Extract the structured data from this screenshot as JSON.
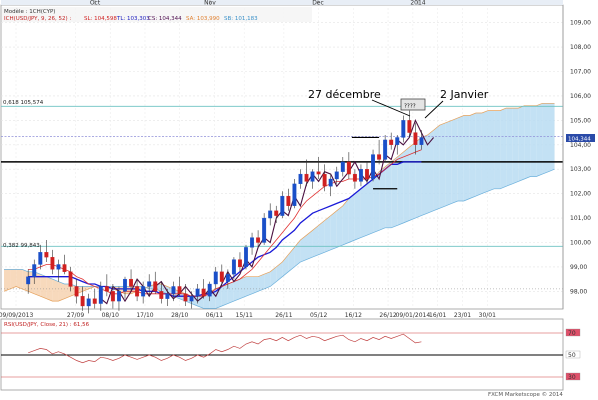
{
  "chart_data": {
    "type": "candlestick",
    "header": {
      "label": "Modèle : 1CH(CYP)",
      "ich": "ICH(USD/JPY, 9, 26, 52) :",
      "sl": "SL: 104,598",
      "tl": "TL: 103,303",
      "cs": "CS: 104,344",
      "sa": "SA: 103,990",
      "sb": "SB: 101,183"
    },
    "months_top": [
      "Oct",
      "Nov",
      "Dec",
      "2014"
    ],
    "x_ticks": [
      "09/09/2013",
      "27/09",
      "08/10",
      "17/10",
      "28/10",
      "06/11",
      "15/11",
      "26/11",
      "05/12",
      "16/12",
      "26/12",
      "09/01/2014",
      "16/01",
      "23/01",
      "30/01"
    ],
    "y_ticks": [
      98,
      99,
      100,
      101,
      102,
      103,
      104,
      105,
      106,
      107,
      108,
      109
    ],
    "y_tick_labels": [
      "98,00",
      "99,00",
      "100,00",
      "101,00",
      "102,00",
      "103,00",
      "104,00",
      "105,00",
      "106,00",
      "107,00",
      "108,00",
      "109,00"
    ],
    "ylim": [
      97.4,
      109.6
    ],
    "last_price_label": "104,344",
    "fib_label": "0,618 105,574",
    "fib_level": 105.574,
    "left_level_label": "0,382 99,843",
    "left_level": 99.843,
    "support_level": 103.3,
    "annotations": [
      "27 décembre",
      "2 Janvier",
      "????"
    ],
    "rsi_label": "RSI(USD/JPY, Close, 21) : 61,56",
    "rsi_ticks": [
      "70",
      "50",
      "30"
    ],
    "footer": "FXCM Marketscope © 2014",
    "candles": [
      {
        "o": 98.3,
        "h": 98.9,
        "l": 97.9,
        "c": 98.6
      },
      {
        "o": 98.6,
        "h": 99.3,
        "l": 98.3,
        "c": 99.1
      },
      {
        "o": 99.1,
        "h": 99.9,
        "l": 98.9,
        "c": 99.6
      },
      {
        "o": 99.6,
        "h": 100.1,
        "l": 99.2,
        "c": 99.4
      },
      {
        "o": 99.4,
        "h": 99.7,
        "l": 98.7,
        "c": 98.9
      },
      {
        "o": 98.9,
        "h": 99.3,
        "l": 98.4,
        "c": 99.1
      },
      {
        "o": 99.1,
        "h": 99.5,
        "l": 98.7,
        "c": 98.8
      },
      {
        "o": 98.8,
        "h": 99.0,
        "l": 98.0,
        "c": 98.2
      },
      {
        "o": 98.2,
        "h": 98.5,
        "l": 97.5,
        "c": 97.8
      },
      {
        "o": 97.8,
        "h": 98.2,
        "l": 97.2,
        "c": 97.4
      },
      {
        "o": 97.4,
        "h": 97.9,
        "l": 97.1,
        "c": 97.7
      },
      {
        "o": 97.7,
        "h": 98.1,
        "l": 97.3,
        "c": 97.5
      },
      {
        "o": 97.5,
        "h": 98.4,
        "l": 97.2,
        "c": 98.2
      },
      {
        "o": 98.2,
        "h": 98.7,
        "l": 97.8,
        "c": 98.0
      },
      {
        "o": 98.0,
        "h": 98.3,
        "l": 97.3,
        "c": 97.6
      },
      {
        "o": 97.6,
        "h": 98.2,
        "l": 97.2,
        "c": 98.0
      },
      {
        "o": 98.0,
        "h": 98.6,
        "l": 97.7,
        "c": 98.5
      },
      {
        "o": 98.5,
        "h": 98.9,
        "l": 98.0,
        "c": 98.2
      },
      {
        "o": 98.2,
        "h": 98.5,
        "l": 97.6,
        "c": 97.8
      },
      {
        "o": 97.8,
        "h": 98.4,
        "l": 97.5,
        "c": 98.2
      },
      {
        "o": 98.2,
        "h": 98.7,
        "l": 97.8,
        "c": 98.4
      },
      {
        "o": 98.4,
        "h": 98.8,
        "l": 97.9,
        "c": 98.0
      },
      {
        "o": 98.0,
        "h": 98.4,
        "l": 97.5,
        "c": 97.7
      },
      {
        "o": 97.7,
        "h": 98.1,
        "l": 97.4,
        "c": 97.9
      },
      {
        "o": 97.9,
        "h": 98.4,
        "l": 97.6,
        "c": 98.2
      },
      {
        "o": 98.2,
        "h": 98.6,
        "l": 97.8,
        "c": 97.9
      },
      {
        "o": 97.9,
        "h": 98.3,
        "l": 97.4,
        "c": 97.6
      },
      {
        "o": 97.6,
        "h": 98.0,
        "l": 97.3,
        "c": 97.8
      },
      {
        "o": 97.8,
        "h": 98.3,
        "l": 97.5,
        "c": 98.1
      },
      {
        "o": 98.1,
        "h": 98.5,
        "l": 97.7,
        "c": 97.8
      },
      {
        "o": 97.8,
        "h": 98.4,
        "l": 97.6,
        "c": 98.3
      },
      {
        "o": 98.3,
        "h": 99.0,
        "l": 98.1,
        "c": 98.8
      },
      {
        "o": 98.8,
        "h": 99.1,
        "l": 98.2,
        "c": 98.4
      },
      {
        "o": 98.4,
        "h": 98.9,
        "l": 98.1,
        "c": 98.7
      },
      {
        "o": 98.7,
        "h": 99.4,
        "l": 98.5,
        "c": 99.3
      },
      {
        "o": 99.3,
        "h": 99.6,
        "l": 98.8,
        "c": 99.0
      },
      {
        "o": 99.0,
        "h": 99.9,
        "l": 98.9,
        "c": 99.8
      },
      {
        "o": 99.8,
        "h": 100.4,
        "l": 99.5,
        "c": 100.2
      },
      {
        "o": 100.2,
        "h": 100.5,
        "l": 99.8,
        "c": 100.0
      },
      {
        "o": 100.0,
        "h": 101.2,
        "l": 99.9,
        "c": 101.0
      },
      {
        "o": 101.0,
        "h": 101.6,
        "l": 100.7,
        "c": 101.3
      },
      {
        "o": 101.3,
        "h": 101.5,
        "l": 100.8,
        "c": 101.1
      },
      {
        "o": 101.1,
        "h": 102.1,
        "l": 101.0,
        "c": 101.9
      },
      {
        "o": 101.9,
        "h": 102.2,
        "l": 101.3,
        "c": 101.5
      },
      {
        "o": 101.5,
        "h": 102.6,
        "l": 101.4,
        "c": 102.4
      },
      {
        "o": 102.4,
        "h": 103.0,
        "l": 102.2,
        "c": 102.8
      },
      {
        "o": 102.8,
        "h": 103.4,
        "l": 102.3,
        "c": 102.5
      },
      {
        "o": 102.5,
        "h": 103.0,
        "l": 102.2,
        "c": 102.9
      },
      {
        "o": 102.9,
        "h": 103.5,
        "l": 102.6,
        "c": 102.8
      },
      {
        "o": 102.8,
        "h": 103.2,
        "l": 102.1,
        "c": 102.3
      },
      {
        "o": 102.3,
        "h": 102.8,
        "l": 101.9,
        "c": 102.6
      },
      {
        "o": 102.6,
        "h": 103.1,
        "l": 102.4,
        "c": 102.9
      },
      {
        "o": 102.9,
        "h": 103.5,
        "l": 102.7,
        "c": 103.3
      },
      {
        "o": 103.3,
        "h": 103.7,
        "l": 102.6,
        "c": 102.8
      },
      {
        "o": 102.8,
        "h": 103.0,
        "l": 102.2,
        "c": 102.5
      },
      {
        "o": 102.5,
        "h": 103.2,
        "l": 102.3,
        "c": 103.0
      },
      {
        "o": 103.0,
        "h": 103.3,
        "l": 102.4,
        "c": 102.6
      },
      {
        "o": 102.6,
        "h": 103.8,
        "l": 102.5,
        "c": 103.6
      },
      {
        "o": 103.6,
        "h": 104.2,
        "l": 103.2,
        "c": 103.4
      },
      {
        "o": 103.4,
        "h": 104.4,
        "l": 103.3,
        "c": 104.2
      },
      {
        "o": 104.2,
        "h": 104.5,
        "l": 103.8,
        "c": 104.0
      },
      {
        "o": 104.0,
        "h": 104.4,
        "l": 103.6,
        "c": 104.3
      },
      {
        "o": 104.3,
        "h": 105.2,
        "l": 104.1,
        "c": 105.0
      },
      {
        "o": 105.0,
        "h": 105.4,
        "l": 104.3,
        "c": 104.5
      },
      {
        "o": 104.5,
        "h": 104.9,
        "l": 103.6,
        "c": 104.0
      },
      {
        "o": 104.0,
        "h": 104.6,
        "l": 103.8,
        "c": 104.3
      }
    ],
    "tenkan": [
      98.9,
      98.9,
      99.0,
      99.1,
      99.1,
      99.0,
      98.9,
      98.8,
      98.6,
      98.5,
      98.3,
      98.2,
      98.1,
      98.0,
      97.9,
      97.9,
      98.0,
      98.0,
      98.0,
      97.9,
      97.9,
      97.9,
      97.9,
      97.9,
      97.9,
      97.9,
      97.9,
      97.8,
      97.8,
      97.8,
      97.9,
      98.1,
      98.2,
      98.3,
      98.4,
      98.5,
      98.7,
      98.9,
      99.2,
      99.5,
      99.8,
      100.1,
      100.4,
      100.7,
      101.0,
      101.4,
      101.7,
      101.9,
      102.1,
      102.3,
      102.4,
      102.5,
      102.5,
      102.6,
      102.6,
      102.6,
      102.6,
      102.7,
      102.8,
      103.0,
      103.2,
      103.4,
      103.5,
      103.6,
      103.7,
      103.8
    ],
    "kijun": [
      98.6,
      98.6,
      98.6,
      98.6,
      98.6,
      98.6,
      98.6,
      98.6,
      98.5,
      98.4,
      98.3,
      98.3,
      98.2,
      98.2,
      98.1,
      98.1,
      98.1,
      98.1,
      98.1,
      98.0,
      98.0,
      98.0,
      97.9,
      97.9,
      97.8,
      97.8,
      97.8,
      97.8,
      97.8,
      97.9,
      97.9,
      98.0,
      98.2,
      98.4,
      98.6,
      98.8,
      99.0,
      99.2,
      99.4,
      99.5,
      99.6,
      99.8,
      100.1,
      100.3,
      100.5,
      100.8,
      101.0,
      101.2,
      101.3,
      101.4,
      101.5,
      101.6,
      101.7,
      101.8,
      102.0,
      102.2,
      102.4,
      102.6,
      102.8,
      103.0,
      103.2,
      103.2,
      103.3,
      103.3,
      103.3,
      103.3
    ],
    "chikou": [
      97.7,
      97.5,
      98.2,
      98.0,
      97.6,
      98.0,
      98.5,
      98.2,
      97.8,
      98.2,
      98.4,
      98.0,
      97.7,
      97.9,
      98.2,
      97.9,
      97.6,
      97.8,
      98.1,
      97.8,
      98.3,
      98.8,
      98.4,
      98.7,
      99.3,
      99.0,
      99.8,
      100.2,
      100.0,
      101.0,
      101.3,
      101.1,
      101.9,
      101.5,
      102.4,
      102.8,
      102.5,
      102.9,
      102.8,
      102.3,
      102.6,
      102.9,
      103.3,
      102.8,
      102.5,
      103.0,
      102.6,
      103.6,
      103.4,
      104.2,
      104.0,
      104.3,
      105.0,
      104.5,
      104.0,
      104.3
    ],
    "span_a": [
      98.0,
      98.1,
      98.2,
      98.1,
      98.0,
      97.9,
      97.8,
      97.7,
      97.6,
      97.6,
      97.7,
      97.8,
      97.9,
      98.0,
      98.1,
      98.2,
      98.2,
      98.2,
      98.1,
      98.0,
      97.9,
      97.9,
      98.0,
      98.1,
      98.2,
      98.3,
      98.3,
      98.2,
      98.1,
      98.0,
      97.9,
      97.8,
      97.8,
      97.9,
      98.0,
      98.1,
      98.2,
      98.3,
      98.4,
      98.5,
      98.6,
      98.6,
      98.6,
      98.7,
      98.8,
      99.0,
      99.2,
      99.5,
      99.8,
      100.1,
      100.3,
      100.5,
      100.7,
      100.9,
      101.1,
      101.3,
      101.5,
      101.8,
      102.0,
      102.2,
      102.4,
      102.6,
      102.9,
      103.1,
      103.3,
      103.5,
      103.7,
      103.9,
      104.1,
      104.3,
      104.4,
      104.6,
      104.8,
      104.9,
      105.0,
      105.1,
      105.2,
      105.2,
      105.3,
      105.3,
      105.4,
      105.4,
      105.4,
      105.5,
      105.5,
      105.5,
      105.6,
      105.6,
      105.6,
      105.7,
      105.7,
      105.7
    ],
    "span_b": [
      98.9,
      98.9,
      98.9,
      98.9,
      98.8,
      98.8,
      98.7,
      98.6,
      98.5,
      98.4,
      98.3,
      98.3,
      98.2,
      98.2,
      98.2,
      98.2,
      98.2,
      98.2,
      98.2,
      98.2,
      98.2,
      98.2,
      98.2,
      98.2,
      98.1,
      98.1,
      98.0,
      97.9,
      97.8,
      97.7,
      97.6,
      97.5,
      97.4,
      97.3,
      97.3,
      97.3,
      97.4,
      97.5,
      97.6,
      97.7,
      97.8,
      97.9,
      98.0,
      98.1,
      98.2,
      98.4,
      98.6,
      98.8,
      99.0,
      99.2,
      99.3,
      99.4,
      99.5,
      99.6,
      99.7,
      99.8,
      99.9,
      100.0,
      100.1,
      100.2,
      100.3,
      100.4,
      100.5,
      100.6,
      100.6,
      100.7,
      100.8,
      100.9,
      101.0,
      101.1,
      101.2,
      101.3,
      101.4,
      101.5,
      101.6,
      101.7,
      101.7,
      101.8,
      101.9,
      102.0,
      102.1,
      102.2,
      102.2,
      102.3,
      102.4,
      102.5,
      102.6,
      102.7,
      102.7,
      102.8,
      102.9,
      103.0
    ],
    "rsi": [
      52,
      54,
      56,
      55,
      51,
      53,
      51,
      48,
      45,
      43,
      45,
      44,
      48,
      47,
      45,
      47,
      50,
      48,
      46,
      48,
      50,
      48,
      45,
      47,
      50,
      48,
      45,
      47,
      50,
      48,
      51,
      55,
      53,
      55,
      58,
      56,
      60,
      62,
      60,
      64,
      65,
      63,
      66,
      63,
      66,
      68,
      65,
      67,
      66,
      63,
      65,
      67,
      68,
      64,
      62,
      65,
      63,
      66,
      64,
      67,
      65,
      67,
      69,
      65,
      61,
      62
    ]
  }
}
